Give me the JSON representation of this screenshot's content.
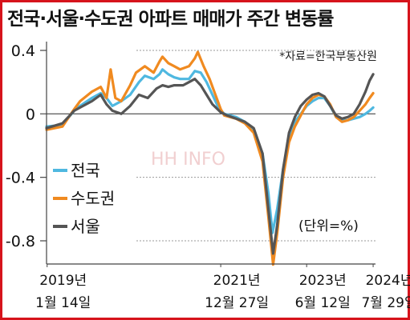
{
  "title": "전국·서울·수도권 아파트 매매가 주간 변동률",
  "source_note": "*자료=한국부동산원",
  "unit_note": "(단위=%)",
  "watermark": "HH INFO",
  "chart_data": {
    "type": "line",
    "title": "전국·서울·수도권 아파트 매매가 주간 변동률",
    "xlabel": "",
    "ylabel": "",
    "ylim": [
      -0.95,
      0.42
    ],
    "yticks": [
      {
        "value": 0.4,
        "label": "0.4"
      },
      {
        "value": 0,
        "label": "0"
      },
      {
        "value": -0.4,
        "label": "-0.4"
      },
      {
        "value": -0.8,
        "label": "-0.8"
      }
    ],
    "xlim": [
      2019.03,
      2024.62
    ],
    "xticks": [
      {
        "value": 2019.04,
        "line1": "2019년",
        "line2": "1월 14일"
      },
      {
        "value": 2021.99,
        "line1": "2021년",
        "line2": "12월 27일"
      },
      {
        "value": 2023.45,
        "line1": "2023년",
        "line2": "6월 12일"
      },
      {
        "value": 2024.58,
        "line1": "2024년",
        "line2": "7월 29일"
      }
    ],
    "grid": "dashed horizontal",
    "legend_position": "bottom-left",
    "series": [
      {
        "name": "전국",
        "color": "#4fb8e0",
        "points": [
          [
            2019.03,
            -0.08
          ],
          [
            2019.3,
            -0.07
          ],
          [
            2019.5,
            0.02
          ],
          [
            2019.6,
            0.05
          ],
          [
            2019.8,
            0.1
          ],
          [
            2019.95,
            0.13
          ],
          [
            2020.05,
            0.1
          ],
          [
            2020.15,
            0.05
          ],
          [
            2020.3,
            0.08
          ],
          [
            2020.45,
            0.12
          ],
          [
            2020.6,
            0.2
          ],
          [
            2020.7,
            0.24
          ],
          [
            2020.85,
            0.22
          ],
          [
            2020.95,
            0.25
          ],
          [
            2021.0,
            0.28
          ],
          [
            2021.1,
            0.25
          ],
          [
            2021.2,
            0.23
          ],
          [
            2021.3,
            0.22
          ],
          [
            2021.45,
            0.22
          ],
          [
            2021.55,
            0.27
          ],
          [
            2021.65,
            0.26
          ],
          [
            2021.75,
            0.2
          ],
          [
            2021.85,
            0.12
          ],
          [
            2021.95,
            0.04
          ],
          [
            2022.05,
            0.0
          ],
          [
            2022.25,
            -0.02
          ],
          [
            2022.4,
            -0.05
          ],
          [
            2022.55,
            -0.1
          ],
          [
            2022.7,
            -0.25
          ],
          [
            2022.8,
            -0.5
          ],
          [
            2022.87,
            -0.75
          ],
          [
            2022.95,
            -0.6
          ],
          [
            2023.05,
            -0.35
          ],
          [
            2023.15,
            -0.15
          ],
          [
            2023.25,
            -0.05
          ],
          [
            2023.35,
            0.0
          ],
          [
            2023.45,
            0.05
          ],
          [
            2023.55,
            0.08
          ],
          [
            2023.65,
            0.1
          ],
          [
            2023.75,
            0.1
          ],
          [
            2023.85,
            0.05
          ],
          [
            2023.95,
            -0.02
          ],
          [
            2024.05,
            -0.04
          ],
          [
            2024.15,
            -0.04
          ],
          [
            2024.25,
            -0.03
          ],
          [
            2024.35,
            -0.02
          ],
          [
            2024.45,
            0.0
          ],
          [
            2024.52,
            0.02
          ],
          [
            2024.58,
            0.04
          ]
        ]
      },
      {
        "name": "수도권",
        "color": "#f08a20",
        "points": [
          [
            2019.03,
            -0.1
          ],
          [
            2019.3,
            -0.08
          ],
          [
            2019.5,
            0.03
          ],
          [
            2019.6,
            0.08
          ],
          [
            2019.8,
            0.14
          ],
          [
            2019.95,
            0.17
          ],
          [
            2020.05,
            0.1
          ],
          [
            2020.12,
            0.28
          ],
          [
            2020.2,
            0.1
          ],
          [
            2020.3,
            0.08
          ],
          [
            2020.45,
            0.18
          ],
          [
            2020.55,
            0.26
          ],
          [
            2020.7,
            0.3
          ],
          [
            2020.85,
            0.26
          ],
          [
            2020.95,
            0.33
          ],
          [
            2021.0,
            0.36
          ],
          [
            2021.1,
            0.32
          ],
          [
            2021.2,
            0.3
          ],
          [
            2021.3,
            0.28
          ],
          [
            2021.45,
            0.3
          ],
          [
            2021.55,
            0.35
          ],
          [
            2021.6,
            0.39
          ],
          [
            2021.7,
            0.3
          ],
          [
            2021.8,
            0.22
          ],
          [
            2021.9,
            0.12
          ],
          [
            2021.99,
            0.03
          ],
          [
            2022.05,
            -0.01
          ],
          [
            2022.25,
            -0.03
          ],
          [
            2022.4,
            -0.06
          ],
          [
            2022.55,
            -0.12
          ],
          [
            2022.7,
            -0.3
          ],
          [
            2022.8,
            -0.65
          ],
          [
            2022.88,
            -0.95
          ],
          [
            2022.95,
            -0.75
          ],
          [
            2023.05,
            -0.4
          ],
          [
            2023.15,
            -0.18
          ],
          [
            2023.25,
            -0.08
          ],
          [
            2023.35,
            -0.01
          ],
          [
            2023.45,
            0.06
          ],
          [
            2023.55,
            0.1
          ],
          [
            2023.65,
            0.12
          ],
          [
            2023.75,
            0.11
          ],
          [
            2023.85,
            0.06
          ],
          [
            2023.95,
            -0.02
          ],
          [
            2024.05,
            -0.05
          ],
          [
            2024.15,
            -0.04
          ],
          [
            2024.25,
            -0.02
          ],
          [
            2024.35,
            0.02
          ],
          [
            2024.45,
            0.06
          ],
          [
            2024.52,
            0.1
          ],
          [
            2024.58,
            0.13
          ]
        ]
      },
      {
        "name": "서울",
        "color": "#555555",
        "points": [
          [
            2019.03,
            -0.09
          ],
          [
            2019.3,
            -0.06
          ],
          [
            2019.5,
            0.02
          ],
          [
            2019.6,
            0.04
          ],
          [
            2019.8,
            0.08
          ],
          [
            2019.95,
            0.12
          ],
          [
            2020.05,
            0.06
          ],
          [
            2020.15,
            0.02
          ],
          [
            2020.3,
            0.0
          ],
          [
            2020.45,
            0.05
          ],
          [
            2020.6,
            0.12
          ],
          [
            2020.75,
            0.1
          ],
          [
            2020.9,
            0.16
          ],
          [
            2021.0,
            0.18
          ],
          [
            2021.1,
            0.17
          ],
          [
            2021.2,
            0.18
          ],
          [
            2021.35,
            0.18
          ],
          [
            2021.45,
            0.2
          ],
          [
            2021.55,
            0.22
          ],
          [
            2021.65,
            0.18
          ],
          [
            2021.75,
            0.12
          ],
          [
            2021.85,
            0.06
          ],
          [
            2021.99,
            0.01
          ],
          [
            2022.1,
            -0.01
          ],
          [
            2022.25,
            -0.03
          ],
          [
            2022.4,
            -0.05
          ],
          [
            2022.55,
            -0.09
          ],
          [
            2022.7,
            -0.25
          ],
          [
            2022.8,
            -0.6
          ],
          [
            2022.88,
            -0.88
          ],
          [
            2022.95,
            -0.7
          ],
          [
            2023.05,
            -0.35
          ],
          [
            2023.15,
            -0.12
          ],
          [
            2023.25,
            -0.02
          ],
          [
            2023.35,
            0.05
          ],
          [
            2023.45,
            0.09
          ],
          [
            2023.55,
            0.12
          ],
          [
            2023.65,
            0.13
          ],
          [
            2023.75,
            0.11
          ],
          [
            2023.85,
            0.05
          ],
          [
            2023.95,
            -0.01
          ],
          [
            2024.05,
            -0.03
          ],
          [
            2024.15,
            -0.02
          ],
          [
            2024.25,
            0.0
          ],
          [
            2024.35,
            0.06
          ],
          [
            2024.45,
            0.14
          ],
          [
            2024.52,
            0.21
          ],
          [
            2024.58,
            0.25
          ]
        ]
      }
    ],
    "legend": [
      "전국",
      "수도권",
      "서울"
    ]
  }
}
